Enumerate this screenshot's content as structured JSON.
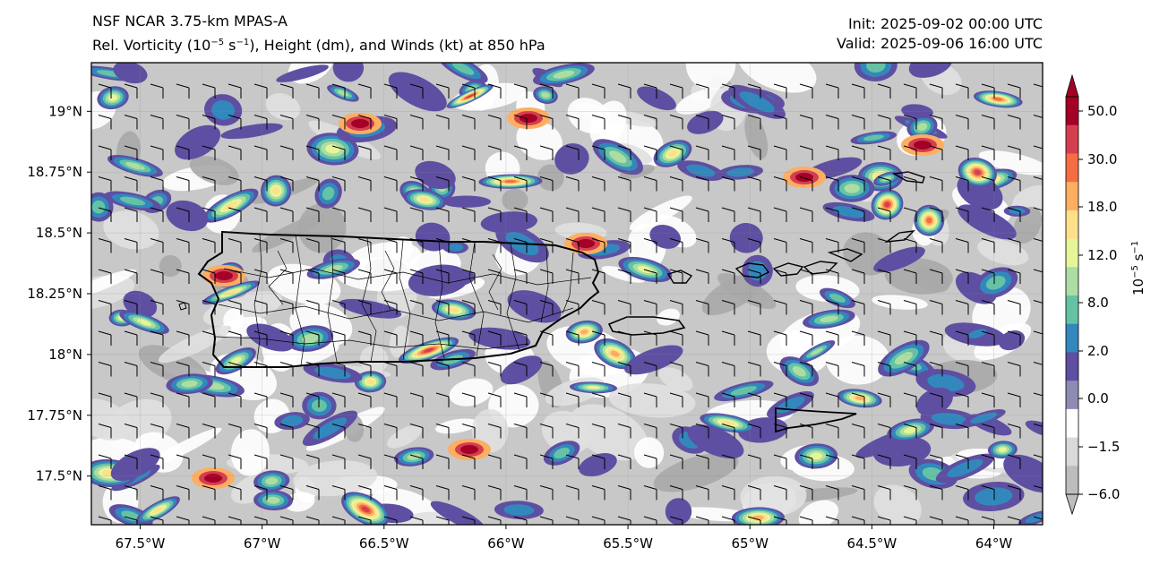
{
  "header": {
    "title_line1": "NSF NCAR 3.75-km MPAS-A",
    "title_line2_pre": "Rel. Vorticity (10",
    "title_line2_exp": "−5",
    "title_line2_mid": " s",
    "title_line2_exp2": "−1",
    "title_line2_post": "), Height (dm), and Winds (kt) at 850 hPa",
    "init": "Init: 2025-09-02 00:00 UTC",
    "valid": "Valid: 2025-09-06 16:00 UTC"
  },
  "map": {
    "lat_labels": [
      "19°N",
      "18.75°N",
      "18.5°N",
      "18.25°N",
      "18°N",
      "17.75°N",
      "17.5°N"
    ],
    "lon_labels": [
      "67.5°W",
      "67°W",
      "66.5°W",
      "66°W",
      "65.5°W",
      "65°W",
      "64.5°W",
      "64°W"
    ],
    "extent": {
      "lon_min": -67.7,
      "lon_max": -63.8,
      "lat_min": 17.3,
      "lat_max": 19.2
    }
  },
  "colorbar": {
    "ticks": [
      "50.0",
      "30.0",
      "18.0",
      "12.0",
      "8.0",
      "2.0",
      "0.0",
      "−1.5",
      "−6.0"
    ],
    "label": "10",
    "label_exp": "−5",
    "label_post": " s",
    "label_exp2": "−1",
    "colors": [
      "#a50026",
      "#d53e4f",
      "#f46d43",
      "#fdae61",
      "#fee08b",
      "#e6f598",
      "#abdda4",
      "#66c2a5",
      "#3288bd",
      "#5e4fa2",
      "#8e8bb4",
      "#ffffff",
      "#d9d9d9",
      "#bdbdbd"
    ]
  }
}
